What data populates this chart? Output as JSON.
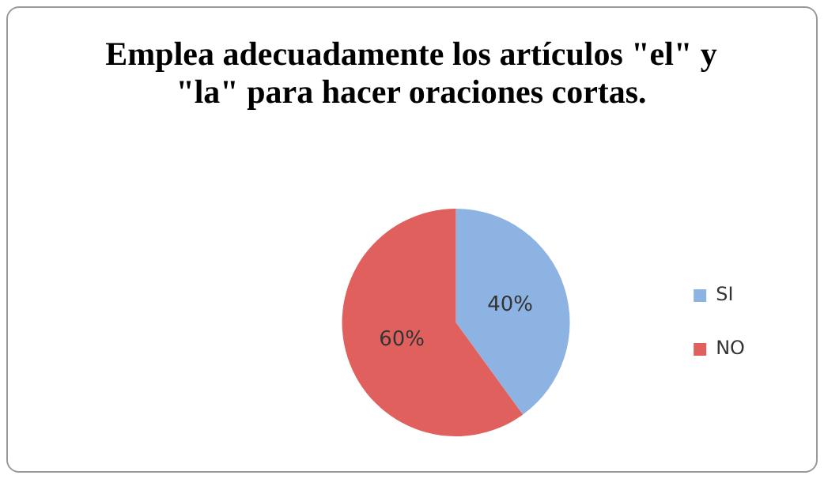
{
  "chart_data": {
    "type": "pie",
    "title": "Emplea adecuadamente los artículos \"el\" y \"la\" para hacer oraciones cortas.",
    "categories": [
      "SI",
      "NO"
    ],
    "values": [
      40,
      60
    ],
    "value_labels": [
      "40%",
      "60%"
    ],
    "colors": [
      "#8db3e2",
      "#e0605e"
    ],
    "legend": "right"
  }
}
